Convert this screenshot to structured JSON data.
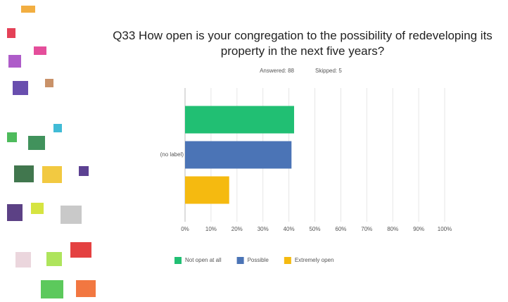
{
  "chart_data": {
    "type": "bar",
    "orientation": "horizontal",
    "title": "Q33 How open is your congregation to the possibility of redeveloping its property in the next five years?",
    "subtitle": [
      "Answered: 88",
      "Skipped: 5"
    ],
    "categories": [
      "(no label)"
    ],
    "series": [
      {
        "name": "Not open at all",
        "color": "#21bf73",
        "values": [
          42
        ]
      },
      {
        "name": "Possible",
        "color": "#4b74b6",
        "values": [
          41
        ]
      },
      {
        "name": "Extremely open",
        "color": "#f5ba10",
        "values": [
          17
        ]
      }
    ],
    "xlim": [
      0,
      100
    ],
    "xticks": [
      {
        "value": 0,
        "label": "0%"
      },
      {
        "value": 10,
        "label": "10%"
      },
      {
        "value": 20,
        "label": "20%"
      },
      {
        "value": 30,
        "label": "30%"
      },
      {
        "value": 40,
        "label": "40%"
      },
      {
        "value": 50,
        "label": "50%"
      },
      {
        "value": 60,
        "label": "60%"
      },
      {
        "value": 70,
        "label": "70%"
      },
      {
        "value": 80,
        "label": "80%"
      },
      {
        "value": 90,
        "label": "90%"
      },
      {
        "value": 100,
        "label": "100%"
      }
    ],
    "grid": true,
    "legend": "bottom"
  }
}
